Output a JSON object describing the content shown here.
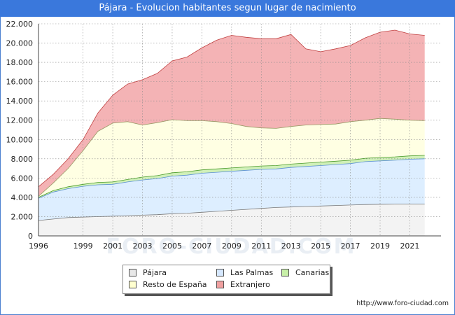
{
  "header": {
    "title": "Pájara - Evolucion habitantes segun lugar de nacimiento"
  },
  "watermark_text": "FORO-CIUDAD.COM",
  "footer": {
    "url": "http://www.foro-ciudad.com"
  },
  "chart_data": {
    "type": "area",
    "stacked": true,
    "x": [
      1996,
      1997,
      1998,
      1999,
      2000,
      2001,
      2002,
      2003,
      2004,
      2005,
      2006,
      2007,
      2008,
      2009,
      2010,
      2011,
      2012,
      2013,
      2014,
      2015,
      2016,
      2017,
      2018,
      2019,
      2020,
      2021,
      2022
    ],
    "x_tick_labels": [
      "1996",
      "1999",
      "2001",
      "2003",
      "2005",
      "2007",
      "2009",
      "2011",
      "2013",
      "2015",
      "2017",
      "2019",
      "2021"
    ],
    "x_tick_values": [
      1996,
      1999,
      2001,
      2003,
      2005,
      2007,
      2009,
      2011,
      2013,
      2015,
      2017,
      2019,
      2021
    ],
    "xlim": [
      1996,
      2023.1
    ],
    "y_tick_labels": [
      "0",
      "2.000",
      "4.000",
      "6.000",
      "8.000",
      "10.000",
      "12.000",
      "14.000",
      "16.000",
      "18.000",
      "20.000",
      "22.000"
    ],
    "y_tick_values": [
      0,
      2000,
      4000,
      6000,
      8000,
      10000,
      12000,
      14000,
      16000,
      18000,
      20000,
      22000
    ],
    "ylim": [
      0,
      22000
    ],
    "grid": true,
    "legend_position": "bottom",
    "series": [
      {
        "name": "Pájara",
        "color": "#f3f3f3",
        "line": "#777777",
        "legend_swatch": "#e8e8e8",
        "values": [
          1600,
          1750,
          1900,
          1950,
          2000,
          2050,
          2100,
          2150,
          2200,
          2300,
          2350,
          2450,
          2550,
          2650,
          2750,
          2850,
          2950,
          3000,
          3050,
          3100,
          3150,
          3200,
          3250,
          3280,
          3300,
          3300,
          3300
        ]
      },
      {
        "name": "Las Palmas",
        "color": "#ddeeff",
        "line": "#5a8fd0",
        "legend_swatch": "#d6e8ff",
        "values": [
          2300,
          2800,
          3000,
          3200,
          3300,
          3300,
          3500,
          3650,
          3750,
          3900,
          3950,
          4050,
          4050,
          4050,
          4050,
          4050,
          4000,
          4100,
          4150,
          4200,
          4250,
          4300,
          4450,
          4500,
          4550,
          4650,
          4700
        ]
      },
      {
        "name": "Canarias",
        "color": "#d0f0b8",
        "line": "#4a9a2a",
        "legend_swatch": "#c8f0a8",
        "values": [
          100,
          150,
          200,
          200,
          250,
          250,
          250,
          300,
          300,
          350,
          350,
          350,
          350,
          350,
          350,
          350,
          350,
          350,
          350,
          350,
          350,
          350,
          350,
          350,
          350,
          350,
          350
        ]
      },
      {
        "name": "Resto de España",
        "color": "#ffffe3",
        "line": "#999966",
        "legend_swatch": "#ffffd0",
        "values": [
          100,
          800,
          1900,
          3500,
          5300,
          6100,
          6000,
          5400,
          5500,
          5500,
          5300,
          5100,
          4900,
          4600,
          4200,
          3950,
          3850,
          3900,
          3950,
          3900,
          3850,
          4000,
          3950,
          4050,
          3900,
          3700,
          3600
        ]
      },
      {
        "name": "Extranjero",
        "color": "#f4b3b5",
        "line": "#c04040",
        "legend_swatch": "#f0a0a0",
        "values": [
          1000,
          900,
          1000,
          1150,
          1900,
          2900,
          3900,
          4700,
          5100,
          6100,
          6600,
          7550,
          8450,
          9150,
          9250,
          9250,
          9300,
          9550,
          7900,
          7550,
          7800,
          7900,
          8550,
          8950,
          9250,
          8950,
          8850
        ]
      }
    ]
  }
}
